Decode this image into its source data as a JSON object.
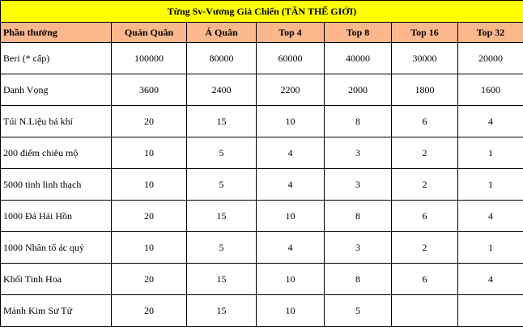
{
  "title": "Từng Sv-Vương Giả Chiến (TÂN THẾ GIỚI)",
  "colors": {
    "title_bg": "#ffff00",
    "header_bg": "#fcb88c",
    "border": "#000000"
  },
  "columns": [
    "Phần thưởng",
    "Quán Quân",
    "Á Quân",
    "Top 4",
    "Top 8",
    "Top 16",
    "Top 32"
  ],
  "rows": [
    [
      "Beri (* cấp)",
      "100000",
      "80000",
      "60000",
      "40000",
      "30000",
      "20000"
    ],
    [
      "Danh Vọng",
      "3600",
      "2400",
      "2200",
      "2000",
      "1800",
      "1600"
    ],
    [
      "Túi N.Liệu bá khí",
      "20",
      "15",
      "10",
      "8",
      "6",
      "4"
    ],
    [
      "200 điểm chiêu mộ",
      "10",
      "5",
      "4",
      "3",
      "2",
      "1"
    ],
    [
      "5000 tinh linh thạch",
      "10",
      "5",
      "4",
      "3",
      "2",
      "1"
    ],
    [
      "1000 Đá Hải Hồn",
      "20",
      "15",
      "10",
      "8",
      "6",
      "4"
    ],
    [
      "1000 Nhân tố ác quỷ",
      "10",
      "5",
      "4",
      "3",
      "2",
      "1"
    ],
    [
      "Khối Tinh Hoa",
      "20",
      "15",
      "10",
      "8",
      "6",
      "4"
    ],
    [
      "Mảnh Kim Sư Tử",
      "20",
      "15",
      "10",
      "5",
      "",
      ""
    ]
  ]
}
